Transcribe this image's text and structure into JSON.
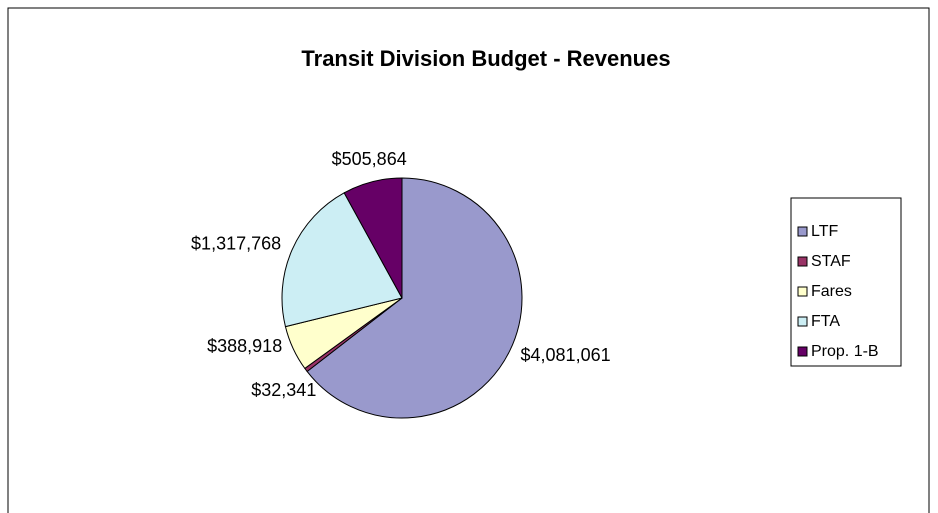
{
  "chart_data": {
    "type": "pie",
    "title": "Transit Division Budget - Revenues",
    "categories": [
      "LTF",
      "STAF",
      "Fares",
      "FTA",
      "Prop. 1-B"
    ],
    "values": [
      4081061,
      32341,
      388918,
      1317768,
      505864
    ],
    "value_labels": [
      "$4,081,061",
      "$32,341",
      "$388,918",
      "$1,317,768",
      "$505,864"
    ],
    "colors": [
      "#9999cc",
      "#993366",
      "#ffffcc",
      "#cceef4",
      "#660066"
    ],
    "legend": "right"
  }
}
